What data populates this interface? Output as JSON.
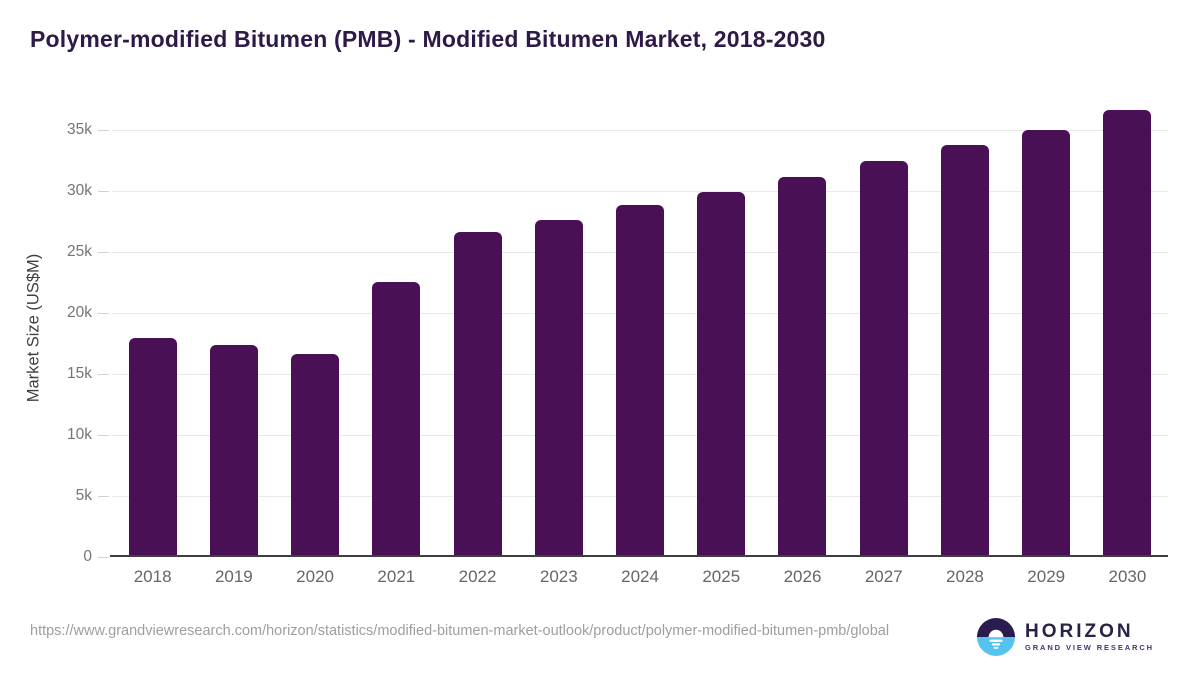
{
  "title": "Polymer-modified Bitumen (PMB) - Modified Bitumen Market, 2018-2030",
  "chart_data": {
    "type": "bar",
    "categories": [
      "2018",
      "2019",
      "2020",
      "2021",
      "2022",
      "2023",
      "2024",
      "2025",
      "2026",
      "2027",
      "2028",
      "2029",
      "2030"
    ],
    "values": [
      17900,
      17400,
      16600,
      22500,
      26600,
      27600,
      28800,
      29900,
      31100,
      32400,
      33700,
      35000,
      36600
    ],
    "title": "Polymer-modified Bitumen (PMB) - Modified Bitumen Market, 2018-2030",
    "xlabel": "",
    "ylabel": "Market Size (US$M)",
    "ylim": [
      0,
      37500
    ],
    "yticks": [
      {
        "value": 0,
        "label": "0"
      },
      {
        "value": 5000,
        "label": "5k"
      },
      {
        "value": 10000,
        "label": "10k"
      },
      {
        "value": 15000,
        "label": "15k"
      },
      {
        "value": 20000,
        "label": "20k"
      },
      {
        "value": 25000,
        "label": "25k"
      },
      {
        "value": 30000,
        "label": "30k"
      },
      {
        "value": 35000,
        "label": "35k"
      }
    ],
    "grid": true,
    "legend": "none",
    "bar_color": "#491056",
    "gridline_color": "#e9e9e9"
  },
  "footer": {
    "source_url": "https://www.grandviewresearch.com/horizon/statistics/modified-bitumen-market-outlook/product/polymer-modified-bitumen-pmb/global",
    "logo": {
      "name": "HORIZON",
      "subtitle": "GRAND VIEW RESEARCH",
      "icon_top_color": "#2b1b4e",
      "icon_bottom_color": "#55c3ee"
    }
  },
  "colors": {
    "title": "#2e1a47",
    "axis_line": "#3f3f3f",
    "tick_label": "#757575",
    "x_label": "#666666",
    "url_text": "#9e9e9e"
  }
}
